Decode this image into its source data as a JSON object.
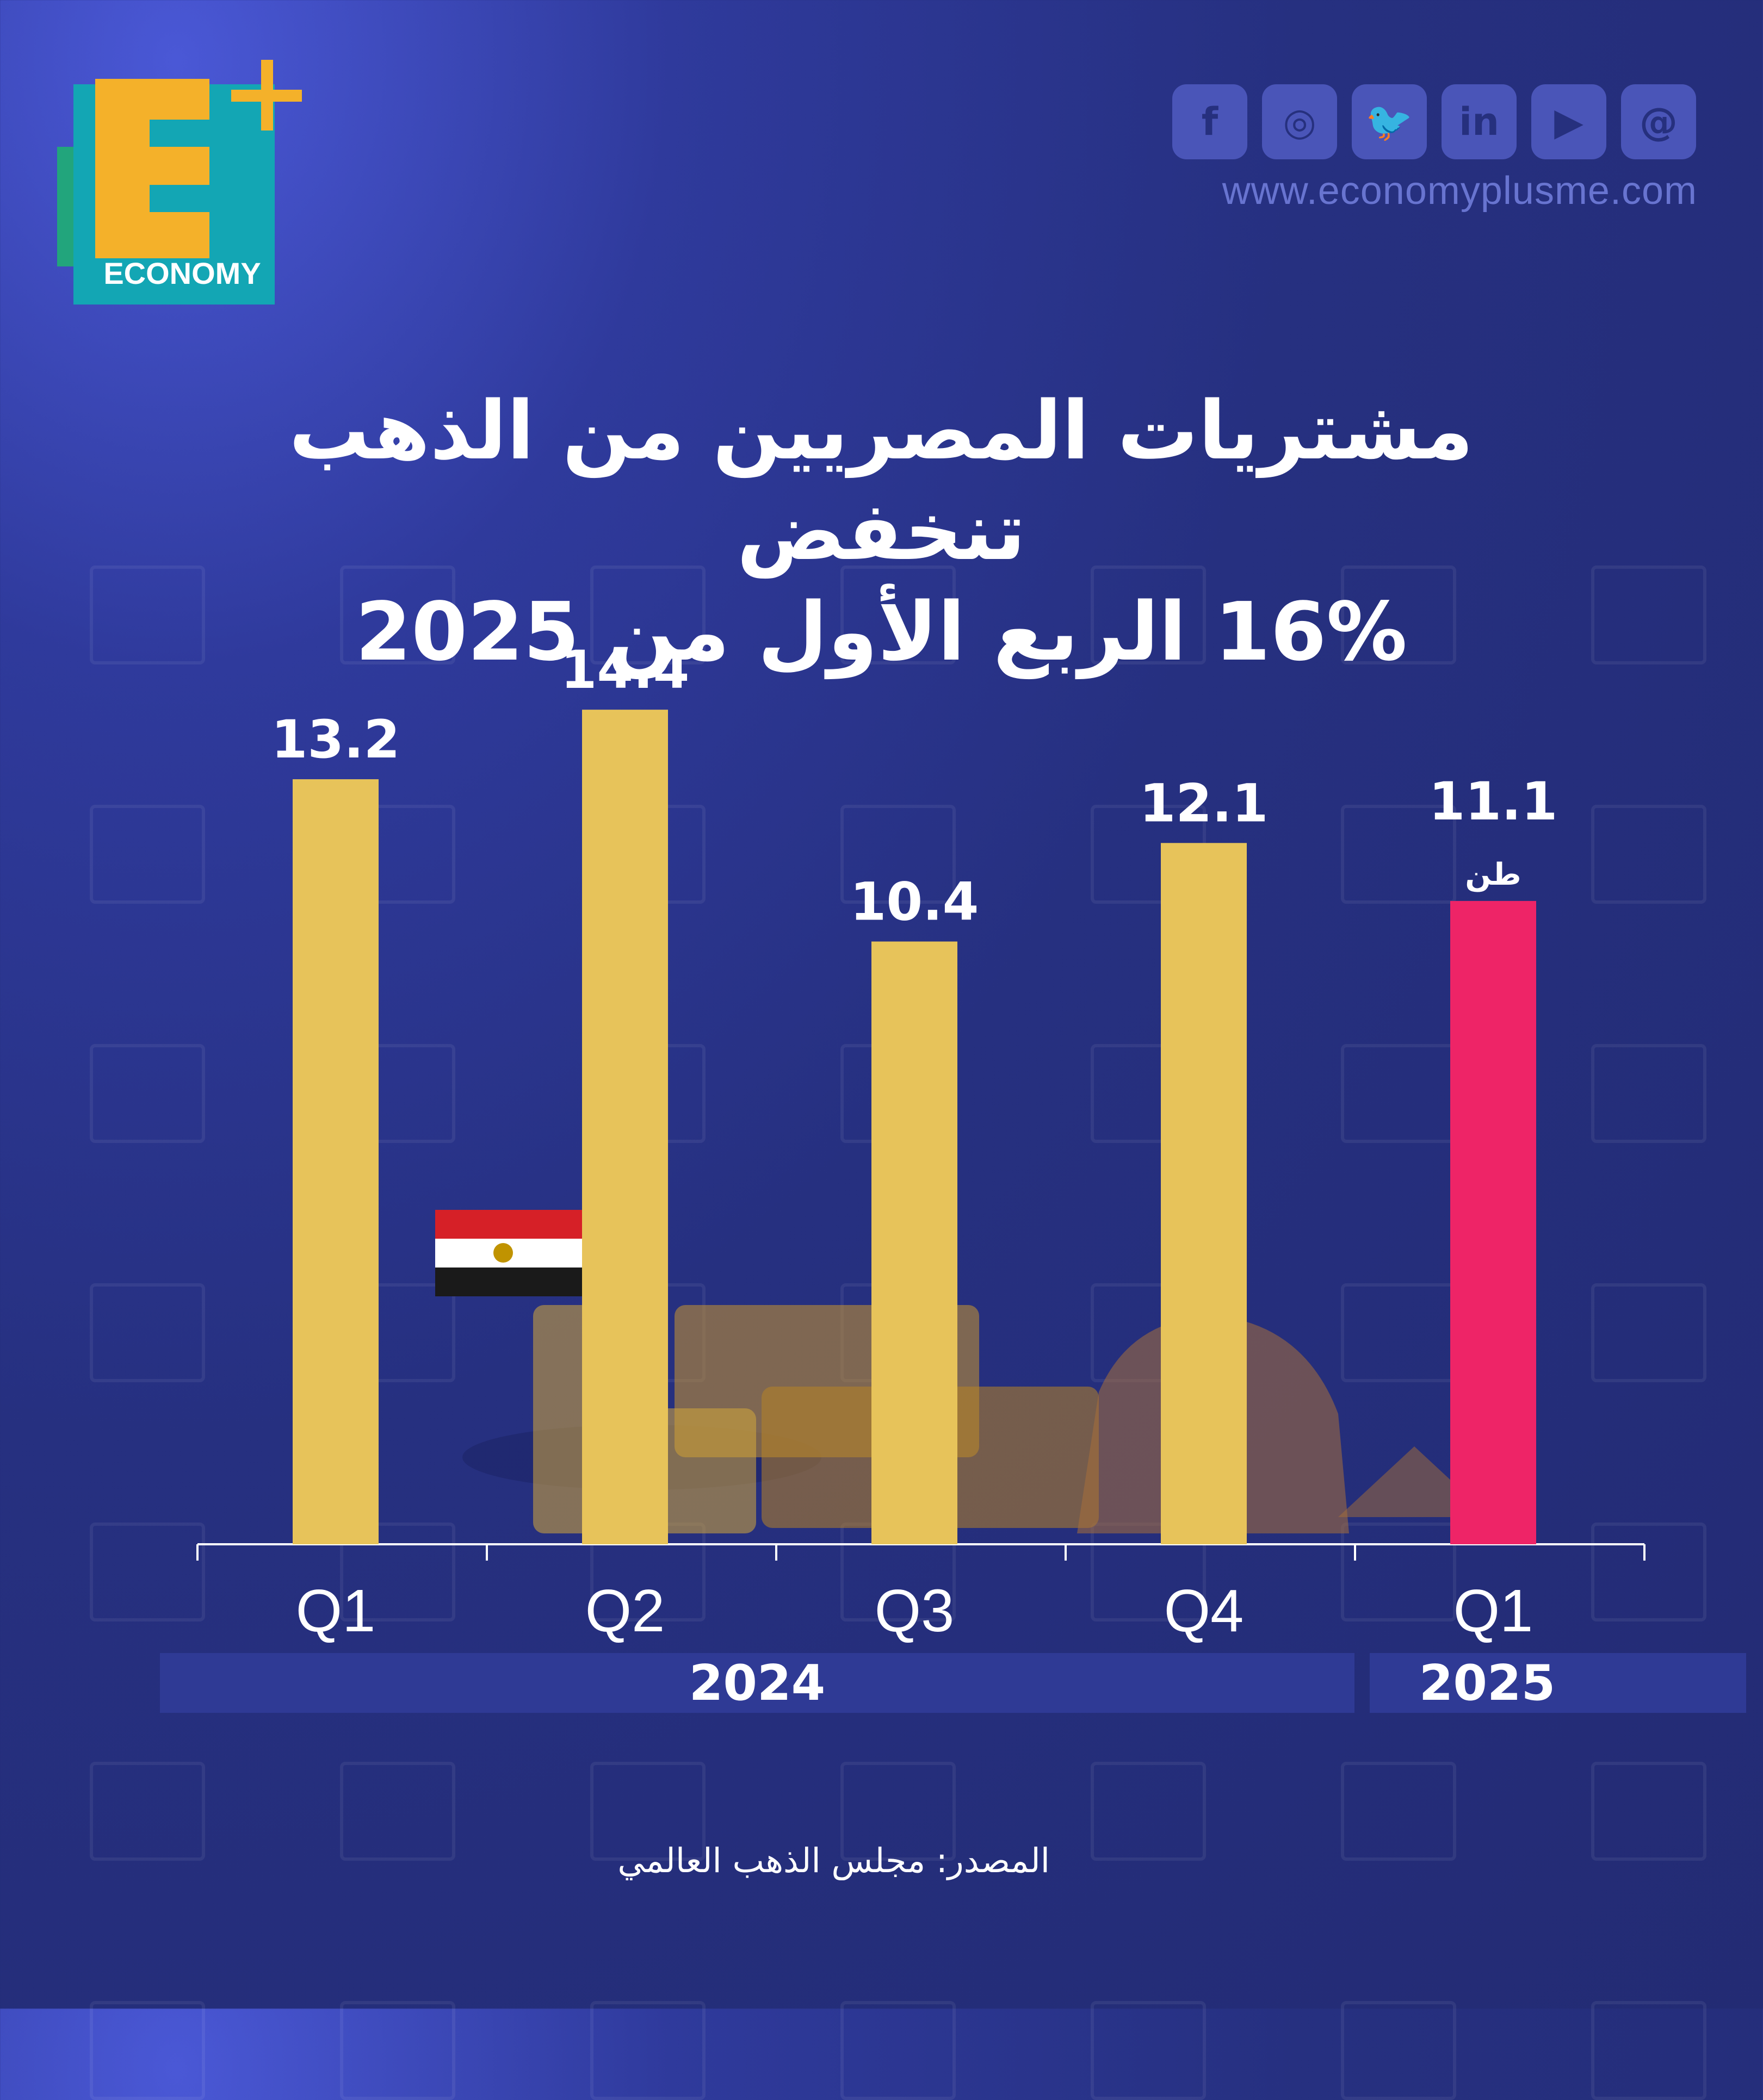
{
  "brand": {
    "logo_letter": "E",
    "logo_plus": "+",
    "logo_word": "ECONOMY"
  },
  "social": {
    "items": [
      {
        "name": "facebook",
        "glyph": "f"
      },
      {
        "name": "instagram",
        "glyph": "◎"
      },
      {
        "name": "twitter",
        "glyph": "🐦"
      },
      {
        "name": "linkedin",
        "glyph": "in"
      },
      {
        "name": "youtube",
        "glyph": "▶"
      },
      {
        "name": "threads",
        "glyph": "@"
      }
    ],
    "website": "www.economyplusme.com"
  },
  "title": {
    "line1": "مشتريات المصريين من الذهب تنخفض",
    "line2": "16% الربع الأول من 2025"
  },
  "source": "المصدر: مجلس الذهب العالمي",
  "colors": {
    "bar": "#e7c35a",
    "highlight": "#ee2467",
    "background": "#263080",
    "year_band": "#2f3a95"
  },
  "chart_data": {
    "type": "bar",
    "categories": [
      "Q1",
      "Q2",
      "Q3",
      "Q4",
      "Q1"
    ],
    "values": [
      13.2,
      14.4,
      10.4,
      12.1,
      11.1
    ],
    "value_labels": [
      "13.2",
      "14.4",
      "10.4",
      "12.1",
      "11.1"
    ],
    "unit": "طن",
    "highlight_index": 4,
    "groups": [
      {
        "label": "2024",
        "categories": [
          0,
          1,
          2,
          3
        ]
      },
      {
        "label": "2025",
        "categories": [
          4
        ]
      }
    ],
    "title": "مشتريات المصريين من الذهب تنخفض 16% الربع الأول من 2025",
    "xlabel": "",
    "ylabel": "",
    "ylim": [
      0,
      16.7
    ],
    "grid": false,
    "legend": "none"
  }
}
